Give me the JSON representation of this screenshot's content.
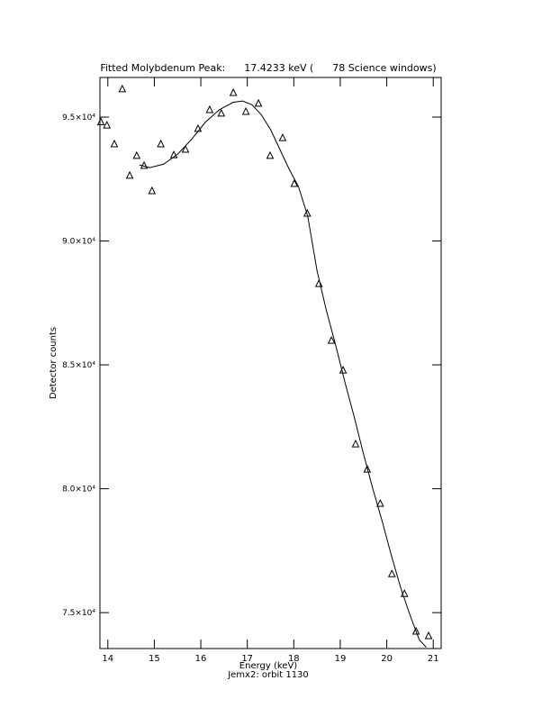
{
  "chart_data": {
    "type": "scatter",
    "title": "Fitted Molybdenum Peak:      17.4233 keV (      78 Science windows)",
    "xlabel": "Energy (keV)",
    "subtitle": "Jemx2: orbit 1130",
    "ylabel": "Detector counts",
    "xlim": [
      13.83,
      21.17
    ],
    "ylim": [
      73550,
      96600
    ],
    "xticks": [
      14,
      15,
      16,
      17,
      18,
      19,
      20,
      21
    ],
    "yticks": [
      {
        "value": 75000,
        "label": "7.5×10⁴"
      },
      {
        "value": 80000,
        "label": "8.0×10⁴"
      },
      {
        "value": 85000,
        "label": "8.5×10⁴"
      },
      {
        "value": 90000,
        "label": "9.0×10⁴"
      },
      {
        "value": 95000,
        "label": "9.5×10⁴"
      }
    ],
    "series": [
      {
        "type": "scatter",
        "marker": "triangle",
        "color": "#000000",
        "x": [
          13.85,
          13.98,
          14.14,
          14.31,
          14.47,
          14.62,
          14.78,
          14.95,
          15.14,
          15.42,
          15.67,
          15.94,
          16.19,
          16.44,
          16.7,
          16.97,
          17.24,
          17.49,
          17.76,
          18.01,
          18.29,
          18.54,
          18.81,
          19.06,
          19.33,
          19.58,
          19.86,
          20.11,
          20.38,
          20.63,
          20.9
        ],
        "values": [
          94800,
          94670,
          93910,
          96130,
          92640,
          93440,
          93040,
          92020,
          93910,
          93470,
          93690,
          94530,
          95290,
          95150,
          95980,
          95220,
          95550,
          93440,
          94160,
          92310,
          91110,
          88270,
          85980,
          84780,
          81800,
          80780,
          79400,
          76560,
          75760,
          74240,
          74060
        ]
      },
      {
        "type": "line",
        "color": "#000000",
        "x": [
          14.68,
          14.9,
          15.2,
          15.5,
          15.8,
          16.1,
          16.4,
          16.7,
          16.9,
          17.1,
          17.3,
          17.5,
          17.7,
          17.9,
          18.1,
          18.3,
          18.5,
          18.7,
          18.9,
          19.1,
          19.3,
          19.5,
          19.7,
          19.9,
          20.1,
          20.3,
          20.5,
          20.7,
          20.85
        ],
        "values": [
          93070,
          92960,
          93100,
          93500,
          94100,
          94800,
          95300,
          95600,
          95650,
          95500,
          95100,
          94500,
          93700,
          92900,
          92200,
          91000,
          88800,
          87200,
          85800,
          84300,
          82900,
          81400,
          80000,
          78700,
          77300,
          76000,
          74900,
          73900,
          73600
        ]
      }
    ]
  }
}
